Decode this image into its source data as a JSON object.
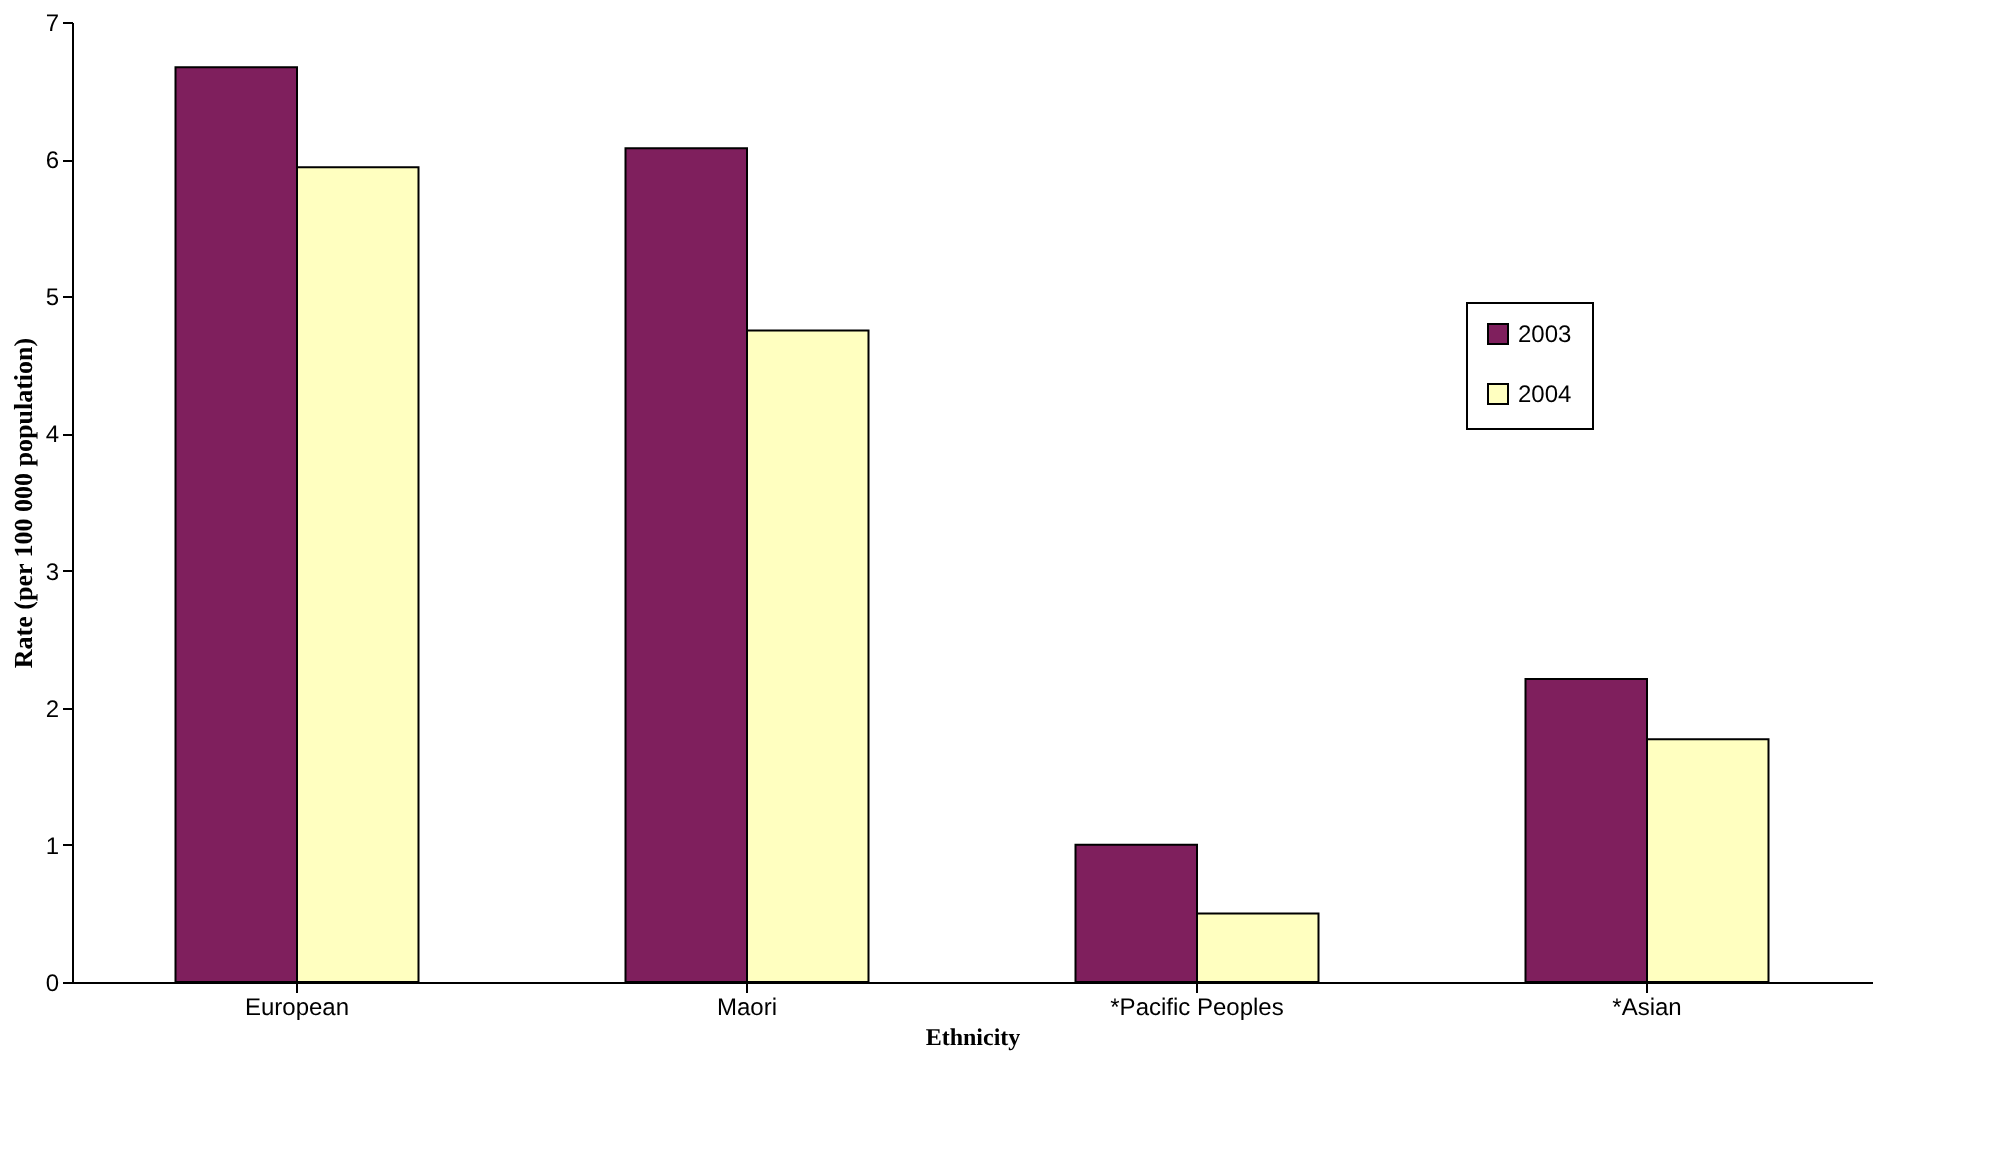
{
  "chart_data": {
    "type": "bar",
    "xlabel": "Ethnicity",
    "ylabel": "Rate (per 100 000 population)",
    "categories": [
      "European",
      "Maori",
      "*Pacific Peoples",
      "*Asian"
    ],
    "series": [
      {
        "name": "2003",
        "color": "#7f1f5d",
        "values": [
          6.67,
          6.08,
          1.0,
          2.21
        ]
      },
      {
        "name": "2004",
        "color": "#ffffc0",
        "values": [
          5.94,
          4.75,
          0.5,
          1.77
        ]
      }
    ],
    "ylim": [
      0,
      7
    ],
    "yticks": [
      0,
      1,
      2,
      3,
      4,
      5,
      6,
      7
    ],
    "grid": false,
    "legend": "top right"
  }
}
